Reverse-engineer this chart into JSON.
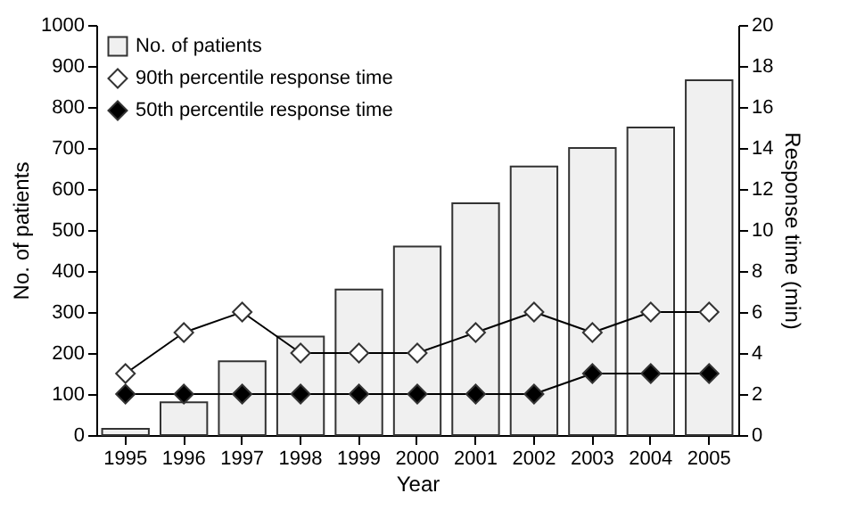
{
  "chart_data": {
    "type": "bar",
    "xlabel": "Year",
    "ylabel": "No. of patients",
    "y2label": "Response time (min)",
    "categories": [
      "1995",
      "1996",
      "1997",
      "1998",
      "1999",
      "2000",
      "2001",
      "2002",
      "2003",
      "2004",
      "2005"
    ],
    "series": [
      {
        "name": "No. of patients",
        "color": "#f0f0f0",
        "values": [
          15,
          80,
          180,
          240,
          355,
          460,
          565,
          655,
          700,
          750,
          865
        ]
      },
      {
        "name": "90th percentile response time",
        "type": "line",
        "axis": "y2",
        "color": "#ffffff",
        "values": [
          3,
          5,
          6,
          4,
          4,
          4,
          5,
          6,
          5,
          6,
          6
        ]
      },
      {
        "name": "50th percentile response time",
        "type": "line",
        "axis": "y2",
        "color": "#000000",
        "values": [
          2,
          2,
          2,
          2,
          2,
          2,
          2,
          2,
          3,
          3,
          3
        ]
      }
    ],
    "ylim": [
      0,
      1000
    ],
    "yticks": [
      0,
      100,
      200,
      300,
      400,
      500,
      600,
      700,
      800,
      900,
      1000
    ],
    "y2lim": [
      0,
      20
    ],
    "y2ticks": [
      0,
      2,
      4,
      6,
      8,
      10,
      12,
      14,
      16,
      18,
      20
    ],
    "legend": "top left",
    "marker": "diamond",
    "grid": false
  }
}
